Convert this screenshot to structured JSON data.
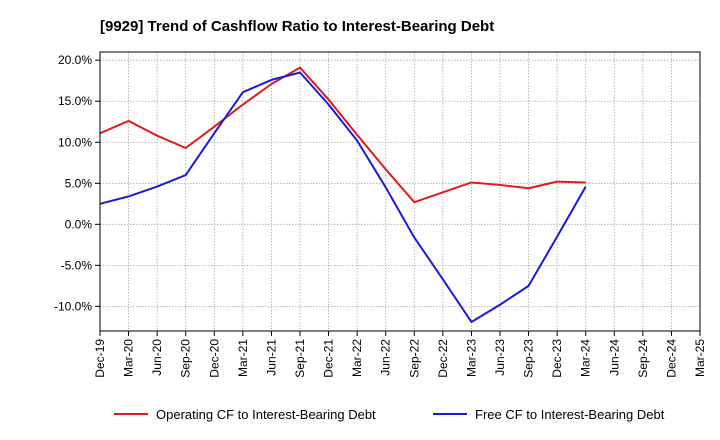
{
  "chart_data": {
    "type": "line",
    "title": "[9929]  Trend of Cashflow Ratio to Interest-Bearing Debt",
    "xlabel": "",
    "ylabel": "",
    "categories": [
      "Dec-19",
      "Mar-20",
      "Jun-20",
      "Sep-20",
      "Dec-20",
      "Mar-21",
      "Jun-21",
      "Sep-21",
      "Dec-21",
      "Mar-22",
      "Jun-22",
      "Sep-22",
      "Dec-22",
      "Mar-23",
      "Jun-23",
      "Sep-23",
      "Dec-23",
      "Mar-24",
      "Jun-24",
      "Sep-24",
      "Dec-24",
      "Mar-25"
    ],
    "y_ticks": [
      "20.0%",
      "15.0%",
      "10.0%",
      "5.0%",
      "0.0%",
      "-5.0%",
      "-10.0%"
    ],
    "y_tick_values": [
      20,
      15,
      10,
      5,
      0,
      -5,
      -10
    ],
    "ylim": [
      -13,
      21
    ],
    "grid": true,
    "legend_position": "bottom",
    "series": [
      {
        "name": "Operating CF to Interest-Bearing Debt",
        "color": "#e31a1c",
        "values": [
          11.1,
          12.6,
          10.8,
          9.3,
          11.9,
          14.6,
          17.1,
          19.1,
          15.2,
          10.9,
          6.7,
          2.7,
          3.9,
          5.1,
          4.8,
          4.4,
          5.2,
          5.1,
          null,
          null,
          null,
          null
        ]
      },
      {
        "name": "Free CF to Interest-Bearing Debt",
        "color": "#1a1adb",
        "values": [
          2.5,
          3.4,
          4.6,
          6.0,
          11.1,
          16.1,
          17.6,
          18.5,
          14.6,
          10.2,
          4.5,
          -1.6,
          -6.7,
          -11.9,
          -9.8,
          -7.5,
          -1.5,
          4.6,
          null,
          null,
          null,
          null
        ]
      }
    ]
  }
}
